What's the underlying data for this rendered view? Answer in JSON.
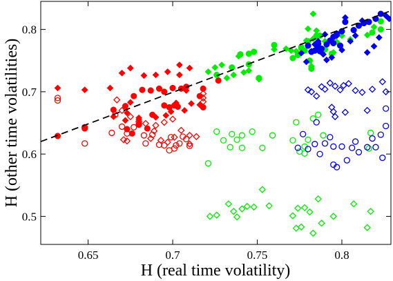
{
  "chart_data": {
    "type": "scatter",
    "xlabel": "H (real time volatility)",
    "ylabel": "H (other time volatilities)",
    "xlim": [
      0.622,
      0.829
    ],
    "ylim": [
      0.455,
      0.845
    ],
    "xticks": [
      0.65,
      0.7,
      0.75,
      0.8
    ],
    "yticks": [
      0.5,
      0.6,
      0.7,
      0.8
    ],
    "grid": false,
    "fit_line": {
      "style": "dashed",
      "color": "#000000",
      "points": [
        [
          0.622,
          0.62
        ],
        [
          0.829,
          0.83
        ]
      ]
    },
    "series": [
      {
        "color": "#ff0000",
        "marker": "diamond",
        "fill": "solid",
        "points": [
          [
            0.632,
            0.706
          ],
          [
            0.648,
            0.703
          ],
          [
            0.663,
            0.706
          ],
          [
            0.67,
            0.73
          ],
          [
            0.675,
            0.738
          ],
          [
            0.683,
            0.726
          ],
          [
            0.69,
            0.727
          ],
          [
            0.697,
            0.732
          ],
          [
            0.704,
            0.727
          ],
          [
            0.704,
            0.743
          ],
          [
            0.71,
            0.738
          ],
          [
            0.708,
            0.702
          ],
          [
            0.675,
            0.683
          ],
          [
            0.673,
            0.666
          ],
          [
            0.68,
            0.658
          ],
          [
            0.69,
            0.659
          ],
          [
            0.696,
            0.662
          ],
          [
            0.699,
            0.668
          ],
          [
            0.702,
            0.682
          ],
          [
            0.707,
            0.67
          ],
          [
            0.711,
            0.681
          ],
          [
            0.716,
            0.679
          ],
          [
            0.665,
            0.66
          ],
          [
            0.672,
            0.654
          ],
          [
            0.68,
            0.655
          ]
        ]
      },
      {
        "color": "#ff0000",
        "marker": "circle",
        "fill": "solid",
        "points": [
          [
            0.632,
            0.629
          ],
          [
            0.648,
            0.641
          ],
          [
            0.665,
            0.671
          ],
          [
            0.672,
            0.677
          ],
          [
            0.677,
            0.693
          ],
          [
            0.682,
            0.703
          ],
          [
            0.687,
            0.702
          ],
          [
            0.692,
            0.705
          ],
          [
            0.695,
            0.7
          ],
          [
            0.7,
            0.706
          ],
          [
            0.705,
            0.705
          ],
          [
            0.708,
            0.708
          ],
          [
            0.716,
            0.693
          ],
          [
            0.718,
            0.675
          ],
          [
            0.718,
            0.705
          ],
          [
            0.727,
            0.718
          ],
          [
            0.673,
            0.64
          ],
          [
            0.676,
            0.633
          ],
          [
            0.68,
            0.647
          ],
          [
            0.685,
            0.641
          ],
          [
            0.698,
            0.675
          ],
          [
            0.701,
            0.678
          ],
          [
            0.703,
            0.676
          ],
          [
            0.695,
            0.678
          ],
          [
            0.688,
            0.663
          ]
        ]
      },
      {
        "color": "#ff0000",
        "marker": "diamond",
        "fill": "open",
        "points": [
          [
            0.667,
            0.687
          ],
          [
            0.67,
            0.67
          ],
          [
            0.675,
            0.66
          ],
          [
            0.68,
            0.652
          ],
          [
            0.684,
            0.649
          ],
          [
            0.69,
            0.646
          ],
          [
            0.695,
            0.651
          ],
          [
            0.7,
            0.656
          ],
          [
            0.705,
            0.638
          ],
          [
            0.71,
            0.63
          ],
          [
            0.714,
            0.628
          ],
          [
            0.718,
            0.69
          ],
          [
            0.718,
            0.697
          ],
          [
            0.718,
            0.684
          ],
          [
            0.671,
            0.623
          ],
          [
            0.673,
            0.621
          ],
          [
            0.687,
            0.625
          ],
          [
            0.693,
            0.622
          ],
          [
            0.697,
            0.619
          ],
          [
            0.701,
            0.627
          ],
          [
            0.71,
            0.616
          ],
          [
            0.689,
            0.637
          ]
        ]
      },
      {
        "color": "#ff0000",
        "marker": "circle",
        "fill": "open",
        "points": [
          [
            0.632,
            0.69
          ],
          [
            0.632,
            0.686
          ],
          [
            0.648,
            0.643
          ],
          [
            0.648,
            0.617
          ],
          [
            0.664,
            0.634
          ],
          [
            0.666,
            0.663
          ],
          [
            0.67,
            0.644
          ],
          [
            0.673,
            0.633
          ],
          [
            0.677,
            0.643
          ],
          [
            0.68,
            0.648
          ],
          [
            0.683,
            0.63
          ],
          [
            0.684,
            0.617
          ],
          [
            0.688,
            0.631
          ],
          [
            0.692,
            0.615
          ],
          [
            0.695,
            0.614
          ],
          [
            0.699,
            0.627
          ],
          [
            0.701,
            0.609
          ],
          [
            0.702,
            0.614
          ],
          [
            0.704,
            0.617
          ],
          [
            0.706,
            0.628
          ],
          [
            0.708,
            0.624
          ],
          [
            0.71,
            0.613
          ],
          [
            0.698,
            0.606
          ]
        ]
      },
      {
        "color": "#00ee00",
        "marker": "diamond",
        "fill": "solid",
        "points": [
          [
            0.721,
            0.732
          ],
          [
            0.725,
            0.739
          ],
          [
            0.729,
            0.743
          ],
          [
            0.732,
            0.722
          ],
          [
            0.736,
            0.727
          ],
          [
            0.739,
            0.757
          ],
          [
            0.742,
            0.731
          ],
          [
            0.745,
            0.734
          ],
          [
            0.751,
            0.72
          ],
          [
            0.76,
            0.768
          ],
          [
            0.767,
            0.769
          ],
          [
            0.77,
            0.766
          ],
          [
            0.773,
            0.765
          ],
          [
            0.776,
            0.773
          ],
          [
            0.779,
            0.782
          ],
          [
            0.78,
            0.801
          ],
          [
            0.783,
            0.785
          ],
          [
            0.785,
            0.798
          ],
          [
            0.787,
            0.771
          ],
          [
            0.79,
            0.781
          ],
          [
            0.795,
            0.763
          ],
          [
            0.797,
            0.78
          ],
          [
            0.8,
            0.79
          ],
          [
            0.805,
            0.784
          ],
          [
            0.815,
            0.791
          ],
          [
            0.819,
            0.804
          ],
          [
            0.783,
            0.825
          ],
          [
            0.782,
            0.741
          ]
        ]
      },
      {
        "color": "#00ee00",
        "marker": "circle",
        "fill": "solid",
        "points": [
          [
            0.726,
            0.727
          ],
          [
            0.735,
            0.739
          ],
          [
            0.74,
            0.76
          ],
          [
            0.745,
            0.744
          ],
          [
            0.751,
            0.722
          ],
          [
            0.76,
            0.775
          ],
          [
            0.771,
            0.754
          ],
          [
            0.774,
            0.759
          ],
          [
            0.776,
            0.77
          ],
          [
            0.778,
            0.766
          ],
          [
            0.781,
            0.75
          ],
          [
            0.782,
            0.737
          ],
          [
            0.785,
            0.79
          ],
          [
            0.787,
            0.79
          ],
          [
            0.79,
            0.768
          ],
          [
            0.794,
            0.761
          ],
          [
            0.818,
            0.795
          ],
          [
            0.823,
            0.8
          ],
          [
            0.823,
            0.813
          ],
          [
            0.78,
            0.781
          ],
          [
            0.748,
            0.764
          ],
          [
            0.745,
            0.761
          ]
        ]
      },
      {
        "color": "#00ee00",
        "marker": "circle",
        "fill": "open",
        "points": [
          [
            0.721,
            0.585
          ],
          [
            0.726,
            0.636
          ],
          [
            0.73,
            0.622
          ],
          [
            0.734,
            0.611
          ],
          [
            0.735,
            0.632
          ],
          [
            0.738,
            0.623
          ],
          [
            0.741,
            0.63
          ],
          [
            0.741,
            0.61
          ],
          [
            0.747,
            0.636
          ],
          [
            0.753,
            0.61
          ],
          [
            0.759,
            0.63
          ],
          [
            0.771,
            0.622
          ],
          [
            0.773,
            0.651
          ],
          [
            0.775,
            0.604
          ],
          [
            0.778,
            0.612
          ],
          [
            0.78,
            0.623
          ],
          [
            0.783,
            0.657
          ],
          [
            0.786,
            0.663
          ],
          [
            0.789,
            0.63
          ],
          [
            0.816,
            0.609
          ],
          [
            0.817,
            0.634
          ],
          [
            0.778,
            0.601
          ]
        ]
      },
      {
        "color": "#00ee00",
        "marker": "diamond",
        "fill": "open",
        "points": [
          [
            0.722,
            0.5
          ],
          [
            0.726,
            0.502
          ],
          [
            0.733,
            0.52
          ],
          [
            0.736,
            0.508
          ],
          [
            0.738,
            0.499
          ],
          [
            0.741,
            0.512
          ],
          [
            0.744,
            0.516
          ],
          [
            0.748,
            0.515
          ],
          [
            0.753,
            0.543
          ],
          [
            0.757,
            0.517
          ],
          [
            0.771,
            0.501
          ],
          [
            0.773,
            0.481
          ],
          [
            0.774,
            0.513
          ],
          [
            0.776,
            0.483
          ],
          [
            0.778,
            0.514
          ],
          [
            0.781,
            0.507
          ],
          [
            0.783,
            0.473
          ],
          [
            0.786,
            0.528
          ],
          [
            0.788,
            0.489
          ],
          [
            0.795,
            0.5
          ],
          [
            0.807,
            0.52
          ],
          [
            0.817,
            0.508
          ],
          [
            0.815,
            0.482
          ]
        ]
      },
      {
        "color": "#0000ee",
        "marker": "diamond",
        "fill": "solid",
        "points": [
          [
            0.776,
            0.762
          ],
          [
            0.779,
            0.748
          ],
          [
            0.782,
            0.765
          ],
          [
            0.786,
            0.781
          ],
          [
            0.789,
            0.76
          ],
          [
            0.791,
            0.751
          ],
          [
            0.794,
            0.755
          ],
          [
            0.797,
            0.79
          ],
          [
            0.8,
            0.767
          ],
          [
            0.802,
            0.819
          ],
          [
            0.805,
            0.781
          ],
          [
            0.808,
            0.79
          ],
          [
            0.812,
            0.814
          ],
          [
            0.815,
            0.763
          ],
          [
            0.819,
            0.773
          ],
          [
            0.822,
            0.787
          ],
          [
            0.826,
            0.822
          ],
          [
            0.828,
            0.817
          ],
          [
            0.784,
            0.776
          ],
          [
            0.79,
            0.792
          ]
        ]
      },
      {
        "color": "#0000ee",
        "marker": "circle",
        "fill": "solid",
        "points": [
          [
            0.78,
            0.774
          ],
          [
            0.782,
            0.764
          ],
          [
            0.784,
            0.766
          ],
          [
            0.786,
            0.771
          ],
          [
            0.788,
            0.769
          ],
          [
            0.791,
            0.776
          ],
          [
            0.793,
            0.782
          ],
          [
            0.795,
            0.788
          ],
          [
            0.797,
            0.793
          ],
          [
            0.8,
            0.797
          ],
          [
            0.802,
            0.812
          ],
          [
            0.807,
            0.799
          ],
          [
            0.81,
            0.806
          ],
          [
            0.813,
            0.81
          ],
          [
            0.816,
            0.812
          ],
          [
            0.82,
            0.817
          ],
          [
            0.823,
            0.825
          ],
          [
            0.795,
            0.778
          ],
          [
            0.799,
            0.774
          ],
          [
            0.787,
            0.765
          ],
          [
            0.786,
            0.777
          ]
        ]
      },
      {
        "color": "#0000ee",
        "marker": "diamond",
        "fill": "open",
        "points": [
          [
            0.78,
            0.703
          ],
          [
            0.782,
            0.7
          ],
          [
            0.785,
            0.693
          ],
          [
            0.788,
            0.708
          ],
          [
            0.79,
            0.704
          ],
          [
            0.793,
            0.714
          ],
          [
            0.796,
            0.709
          ],
          [
            0.799,
            0.703
          ],
          [
            0.801,
            0.71
          ],
          [
            0.804,
            0.713
          ],
          [
            0.808,
            0.702
          ],
          [
            0.812,
            0.699
          ],
          [
            0.818,
            0.704
          ],
          [
            0.824,
            0.716
          ],
          [
            0.826,
            0.7
          ],
          [
            0.795,
            0.668
          ],
          [
            0.794,
            0.675
          ],
          [
            0.802,
            0.667
          ],
          [
            0.796,
            0.66
          ],
          [
            0.815,
            0.67
          ]
        ]
      },
      {
        "color": "#0000ee",
        "marker": "circle",
        "fill": "open",
        "points": [
          [
            0.774,
            0.61
          ],
          [
            0.777,
            0.632
          ],
          [
            0.78,
            0.608
          ],
          [
            0.784,
            0.616
          ],
          [
            0.787,
            0.6
          ],
          [
            0.79,
            0.617
          ],
          [
            0.793,
            0.627
          ],
          [
            0.795,
            0.612
          ],
          [
            0.797,
            0.579
          ],
          [
            0.8,
            0.612
          ],
          [
            0.803,
            0.59
          ],
          [
            0.806,
            0.61
          ],
          [
            0.808,
            0.62
          ],
          [
            0.81,
            0.603
          ],
          [
            0.815,
            0.611
          ],
          [
            0.818,
            0.625
          ],
          [
            0.82,
            0.611
          ],
          [
            0.823,
            0.631
          ],
          [
            0.826,
            0.673
          ],
          [
            0.826,
            0.645
          ],
          [
            0.824,
            0.594
          ],
          [
            0.795,
            0.583
          ],
          [
            0.785,
            0.651
          ]
        ]
      }
    ]
  }
}
